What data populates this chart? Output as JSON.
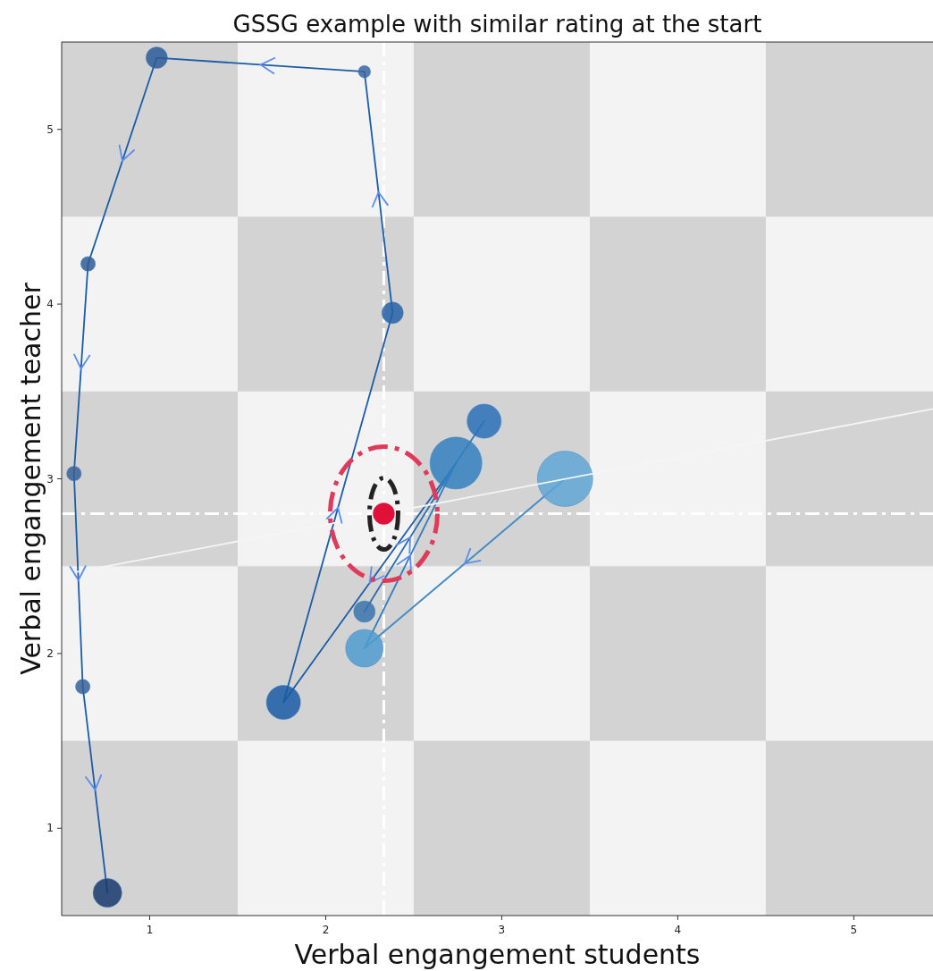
{
  "chart_data": {
    "type": "line",
    "title": "GSSG example with similar rating at the start",
    "xlabel": "Verbal engangement students",
    "ylabel": "Verbal engangement teacher",
    "xlim": [
      0.5,
      5.45
    ],
    "ylim": [
      0.5,
      5.5
    ],
    "xticks": [
      1,
      2,
      3,
      4,
      5
    ],
    "yticks": [
      1,
      2,
      3,
      4,
      5
    ],
    "grid": false,
    "series": [
      {
        "color": "#3f8ac6",
        "marker": "none",
        "x": [
          3.36,
          2.22
        ],
        "values": [
          3.0,
          2.03
        ]
      },
      {
        "color": "#2f7bbf",
        "marker": "none",
        "x": [
          2.22,
          2.74,
          2.9
        ],
        "values": [
          2.03,
          3.09,
          3.33
        ]
      },
      {
        "color": "#1a5da6",
        "marker": "none",
        "x": [
          2.74,
          1.76,
          2.38,
          2.22,
          1.04,
          0.65,
          0.57,
          0.62,
          0.76
        ],
        "values": [
          3.09,
          1.72,
          3.95,
          5.33,
          5.41,
          4.23,
          3.03,
          1.81,
          0.63
        ]
      },
      {
        "color": "#2a6cb0",
        "marker": "none",
        "x": [
          2.22,
          2.74
        ],
        "values": [
          2.24,
          3.09
        ]
      },
      {
        "type": "bubble",
        "color": "#3380c0",
        "x": [
          3.36,
          2.22,
          2.9,
          2.74,
          1.76,
          2.38,
          2.22,
          1.04,
          0.65,
          0.57,
          0.62,
          0.76,
          2.22
        ],
        "values": [
          3.0,
          2.03,
          3.33,
          3.09,
          1.72,
          3.95,
          5.33,
          5.41,
          4.23,
          3.03,
          1.81,
          0.63,
          2.24
        ],
        "sizes": [
          1,
          0.46,
          0.38,
          0.88,
          0.38,
          0.15,
          0.05,
          0.15,
          0.07,
          0.07,
          0.07,
          0.27,
          0.15
        ],
        "colors": [
          "#5fa6d4",
          "#4f9bcf",
          "#2a70b8",
          "#3380c0",
          "#1a5aa5",
          "#2560a8",
          "#3a64a0",
          "#2c5b98",
          "#2f5b96",
          "#365f98",
          "#365f98",
          "#17386d",
          "#3b72ae"
        ]
      },
      {
        "color": "#f5f5f5",
        "marker": "none",
        "x": [
          0.5,
          5.45
        ],
        "values": [
          2.45,
          3.4
        ]
      },
      {
        "type": "scatter",
        "color": "#e0103a",
        "marker": "circle",
        "x": [
          2.33
        ],
        "values": [
          2.8
        ]
      }
    ],
    "ref_lines": [
      {
        "axis": "x",
        "value": 2.33,
        "color": "#ffffff",
        "line_style": "dashed"
      },
      {
        "axis": "y",
        "value": 2.8,
        "color": "#ffffff",
        "line_style": "dashed"
      }
    ]
  }
}
